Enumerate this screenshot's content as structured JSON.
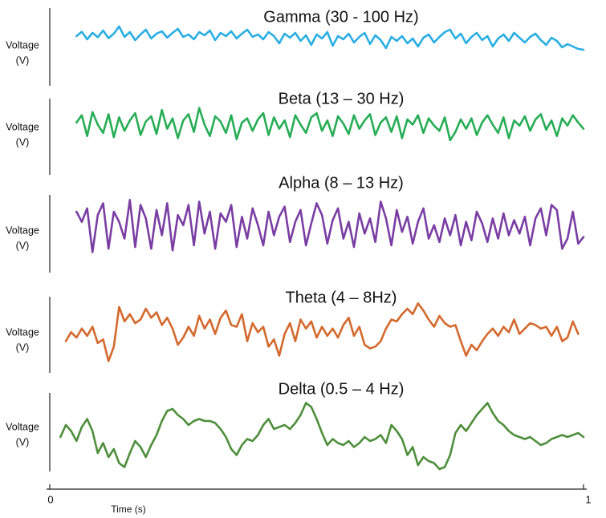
{
  "chart_data": [
    {
      "type": "line",
      "title": "Gamma (30 - 100 Hz)",
      "ylabel_line1": "Voltage",
      "ylabel_line2": "(V)",
      "color": "#2aaee3",
      "series": [
        {
          "x": [
            0.05,
            0.06,
            0.07,
            0.08,
            0.09,
            0.1,
            0.11,
            0.12,
            0.13,
            0.14,
            0.15,
            0.16,
            0.17,
            0.18,
            0.19,
            0.2,
            0.21,
            0.22,
            0.23,
            0.24,
            0.25,
            0.26,
            0.27,
            0.28,
            0.29,
            0.3,
            0.31,
            0.32,
            0.33,
            0.34,
            0.35,
            0.36,
            0.37,
            0.38,
            0.39,
            0.4,
            0.41,
            0.42,
            0.43,
            0.44,
            0.45,
            0.46,
            0.47,
            0.48,
            0.49,
            0.5,
            0.51,
            0.52,
            0.53,
            0.54,
            0.55,
            0.56,
            0.57,
            0.58,
            0.59,
            0.6,
            0.61,
            0.62,
            0.63,
            0.64,
            0.65,
            0.66,
            0.67,
            0.68,
            0.69,
            0.7,
            0.71,
            0.72,
            0.73,
            0.74,
            0.75,
            0.76,
            0.77,
            0.78,
            0.79,
            0.8,
            0.81,
            0.82,
            0.83,
            0.84,
            0.85,
            0.86,
            0.87,
            0.88,
            0.89,
            0.9,
            0.91,
            0.92,
            0.93,
            0.94,
            0.95,
            0.96,
            0.97,
            0.98,
            0.99,
            1.0
          ],
          "y": [
            0.35,
            0.62,
            0.15,
            0.55,
            0.28,
            0.7,
            0.22,
            0.5,
            0.95,
            0.3,
            0.6,
            0.1,
            0.45,
            0.75,
            0.2,
            0.5,
            0.65,
            0.25,
            0.55,
            0.8,
            0.3,
            0.45,
            0.15,
            0.6,
            0.4,
            0.7,
            0.1,
            0.55,
            0.35,
            0.65,
            0.2,
            0.5,
            0.75,
            0.3,
            0.45,
            0.15,
            0.6,
            0.35,
            -0.1,
            0.5,
            0.25,
            0.55,
            0.05,
            0.4,
            -0.2,
            0.45,
            0.2,
            0.6,
            -0.25,
            0.35,
            0.15,
            0.5,
            -0.05,
            0.3,
            0.55,
            -0.15,
            0.4,
            0.1,
            -0.4,
            0.3,
            0.05,
            0.35,
            -0.1,
            0.2,
            -0.3,
            0.25,
            0.45,
            -0.05,
            0.3,
            0.6,
            0.75,
            0.2,
            0.5,
            -0.1,
            0.3,
            0.55,
            0.1,
            0.35,
            -0.3,
            0.2,
            0.45,
            0.05,
            0.55,
            0.25,
            -0.05,
            0.3,
            0.5,
            0.1,
            -0.2,
            0.25,
            0.05,
            -0.35,
            -0.15,
            -0.3,
            -0.45,
            -0.5
          ]
        }
      ]
    },
    {
      "type": "line",
      "title": "Beta (13 – 30 Hz)",
      "ylabel_line1": "Voltage",
      "ylabel_line2": "(V)",
      "color": "#27ad55",
      "series": [
        {
          "x": [
            0.05,
            0.06,
            0.07,
            0.08,
            0.09,
            0.1,
            0.11,
            0.12,
            0.13,
            0.14,
            0.15,
            0.16,
            0.17,
            0.18,
            0.19,
            0.2,
            0.21,
            0.22,
            0.23,
            0.24,
            0.25,
            0.26,
            0.27,
            0.28,
            0.29,
            0.3,
            0.31,
            0.32,
            0.33,
            0.34,
            0.35,
            0.36,
            0.37,
            0.38,
            0.39,
            0.4,
            0.41,
            0.42,
            0.43,
            0.44,
            0.45,
            0.46,
            0.47,
            0.48,
            0.49,
            0.5,
            0.51,
            0.52,
            0.53,
            0.54,
            0.55,
            0.56,
            0.57,
            0.58,
            0.59,
            0.6,
            0.61,
            0.62,
            0.63,
            0.64,
            0.65,
            0.66,
            0.67,
            0.68,
            0.69,
            0.7,
            0.71,
            0.72,
            0.73,
            0.74,
            0.75,
            0.76,
            0.77,
            0.78,
            0.79,
            0.8,
            0.81,
            0.82,
            0.83,
            0.84,
            0.85,
            0.86,
            0.87,
            0.88,
            0.89,
            0.9,
            0.91,
            0.92,
            0.93,
            0.94,
            0.95,
            0.96,
            0.97,
            0.98,
            0.99,
            1.0
          ],
          "y": [
            0.2,
            0.55,
            -0.45,
            0.7,
            0.1,
            -0.3,
            0.6,
            -0.5,
            0.45,
            -0.2,
            0.3,
            0.65,
            -0.4,
            0.25,
            0.5,
            -0.35,
            0.8,
            -0.1,
            0.4,
            -0.55,
            0.3,
            0.6,
            -0.25,
            0.9,
            0.1,
            -0.45,
            0.5,
            0.25,
            -0.3,
            0.55,
            -0.6,
            0.2,
            0.4,
            -0.2,
            0.35,
            0.65,
            -0.4,
            0.45,
            -0.1,
            0.3,
            -0.5,
            0.55,
            0.1,
            -0.3,
            0.45,
            0.65,
            -0.2,
            0.3,
            -0.45,
            0.5,
            0.15,
            -0.35,
            0.55,
            -0.1,
            0.3,
            0.6,
            -0.4,
            0.2,
            0.45,
            -0.25,
            0.5,
            -0.55,
            0.35,
            0.1,
            0.55,
            -0.3,
            0.4,
            0.05,
            -0.2,
            0.45,
            -0.65,
            -0.25,
            0.35,
            -0.1,
            0.4,
            -0.4,
            0.2,
            0.55,
            0.1,
            -0.3,
            0.45,
            -0.55,
            0.3,
            0.05,
            0.5,
            -0.2,
            0.35,
            0.6,
            -0.15,
            0.3,
            -0.45,
            0.4,
            0.05,
            0.55,
            0.2,
            -0.1
          ]
        }
      ]
    },
    {
      "type": "line",
      "title": "Alpha (8 – 13 Hz)",
      "ylabel_line1": "Voltage",
      "ylabel_line2": "(V)",
      "color": "#7a3da3",
      "series": [
        {
          "x": [
            0.05,
            0.06,
            0.07,
            0.08,
            0.09,
            0.1,
            0.11,
            0.12,
            0.13,
            0.14,
            0.15,
            0.16,
            0.17,
            0.18,
            0.19,
            0.2,
            0.21,
            0.22,
            0.23,
            0.24,
            0.25,
            0.26,
            0.27,
            0.28,
            0.29,
            0.3,
            0.31,
            0.32,
            0.33,
            0.34,
            0.35,
            0.36,
            0.37,
            0.38,
            0.39,
            0.4,
            0.41,
            0.42,
            0.43,
            0.44,
            0.45,
            0.46,
            0.47,
            0.48,
            0.49,
            0.5,
            0.51,
            0.52,
            0.53,
            0.54,
            0.55,
            0.56,
            0.57,
            0.58,
            0.59,
            0.6,
            0.61,
            0.62,
            0.63,
            0.64,
            0.65,
            0.66,
            0.67,
            0.68,
            0.69,
            0.7,
            0.71,
            0.72,
            0.73,
            0.74,
            0.75,
            0.76,
            0.77,
            0.78,
            0.79,
            0.8,
            0.81,
            0.82,
            0.83,
            0.84,
            0.85,
            0.86,
            0.87,
            0.88,
            0.89,
            0.9,
            0.91,
            0.92,
            0.93,
            0.94,
            0.95,
            0.96,
            0.97,
            0.98,
            0.99,
            1.0
          ],
          "y": [
            0.5,
            0.2,
            0.6,
            -0.7,
            0.4,
            0.75,
            -0.6,
            0.5,
            0.2,
            -0.3,
            0.85,
            -0.55,
            0.7,
            0.3,
            -0.6,
            0.55,
            -0.2,
            0.75,
            -0.65,
            0.4,
            0.1,
            0.7,
            -0.5,
            0.8,
            -0.15,
            0.5,
            -0.6,
            0.45,
            0.2,
            0.7,
            -0.55,
            0.35,
            -0.3,
            0.6,
            0.1,
            -0.5,
            0.5,
            -0.2,
            0.35,
            0.65,
            -0.4,
            0.2,
            0.55,
            -0.5,
            0.15,
            0.75,
            0.4,
            -0.45,
            0.25,
            0.6,
            -0.3,
            0.2,
            -0.55,
            0.45,
            -0.15,
            0.3,
            -0.4,
            0.8,
            0.3,
            -0.5,
            0.55,
            -0.1,
            0.35,
            -0.45,
            0.2,
            0.6,
            -0.3,
            0.1,
            -0.4,
            0.3,
            -0.2,
            0.4,
            -0.5,
            0.2,
            -0.35,
            0.5,
            0.15,
            -0.4,
            0.3,
            -0.3,
            0.45,
            -0.2,
            0.25,
            -0.15,
            0.35,
            -0.5,
            0.3,
            0.6,
            -0.2,
            0.7,
            0.55,
            -0.6,
            -0.3,
            0.5,
            -0.45,
            -0.25
          ]
        }
      ]
    },
    {
      "type": "line",
      "title": "Theta (4 – 8Hz)",
      "ylabel_line1": "Voltage",
      "ylabel_line2": "(V)",
      "color": "#d4692d",
      "series": [
        {
          "x": [
            0.03,
            0.04,
            0.05,
            0.06,
            0.07,
            0.08,
            0.09,
            0.1,
            0.11,
            0.12,
            0.13,
            0.14,
            0.15,
            0.16,
            0.17,
            0.18,
            0.19,
            0.2,
            0.21,
            0.22,
            0.23,
            0.24,
            0.25,
            0.26,
            0.27,
            0.28,
            0.29,
            0.3,
            0.31,
            0.32,
            0.33,
            0.34,
            0.35,
            0.36,
            0.37,
            0.38,
            0.39,
            0.4,
            0.41,
            0.42,
            0.43,
            0.44,
            0.45,
            0.46,
            0.47,
            0.48,
            0.49,
            0.5,
            0.51,
            0.52,
            0.53,
            0.54,
            0.55,
            0.56,
            0.57,
            0.58,
            0.59,
            0.6,
            0.61,
            0.62,
            0.63,
            0.64,
            0.65,
            0.66,
            0.67,
            0.68,
            0.69,
            0.7,
            0.71,
            0.72,
            0.73,
            0.74,
            0.75,
            0.76,
            0.77,
            0.78,
            0.79,
            0.8,
            0.81,
            0.82,
            0.83,
            0.84,
            0.85,
            0.86,
            0.87,
            0.88,
            0.89,
            0.9,
            0.91,
            0.92,
            0.93,
            0.94,
            0.95,
            0.96,
            0.97,
            0.98,
            0.99
          ],
          "y": [
            -0.3,
            -0.05,
            -0.2,
            0.05,
            -0.15,
            0.1,
            -0.35,
            -0.25,
            -0.85,
            -0.45,
            0.65,
            0.25,
            0.45,
            0.2,
            0.3,
            0.6,
            0.35,
            0.5,
            0.15,
            0.35,
            0.05,
            -0.4,
            -0.2,
            0.1,
            -0.15,
            0.4,
            0.05,
            0.3,
            -0.1,
            0.35,
            0.55,
            0.15,
            0.1,
            0.45,
            -0.3,
            0.2,
            -0.05,
            0.1,
            -0.45,
            -0.25,
            -0.7,
            -0.1,
            0.2,
            -0.3,
            0.3,
            0.05,
            0.25,
            -0.2,
            0.1,
            -0.15,
            0.05,
            -0.2,
            0.15,
            0.35,
            -0.15,
            0.1,
            -0.4,
            -0.5,
            -0.45,
            -0.3,
            0.05,
            0.3,
            0.25,
            0.45,
            0.6,
            0.45,
            0.75,
            0.55,
            0.3,
            0.1,
            0.4,
            0.2,
            0.1,
            0.15,
            -0.3,
            -0.7,
            -0.4,
            -0.55,
            -0.3,
            -0.1,
            0.05,
            -0.15,
            0.1,
            -0.05,
            0.3,
            -0.1,
            0.05,
            0.2,
            0.15,
            0.05,
            0.1,
            -0.15,
            0.1,
            -0.3,
            -0.2,
            0.25,
            -0.1
          ]
        }
      ]
    },
    {
      "type": "line",
      "title": "Delta (0.5 – 4 Hz)",
      "ylabel_line1": "Voltage",
      "ylabel_line2": "(V)",
      "color": "#4e8e3c",
      "series": [
        {
          "x": [
            0.02,
            0.03,
            0.04,
            0.05,
            0.06,
            0.07,
            0.08,
            0.09,
            0.1,
            0.11,
            0.12,
            0.13,
            0.14,
            0.15,
            0.16,
            0.17,
            0.18,
            0.19,
            0.2,
            0.21,
            0.22,
            0.23,
            0.24,
            0.25,
            0.26,
            0.27,
            0.28,
            0.29,
            0.3,
            0.31,
            0.32,
            0.33,
            0.34,
            0.35,
            0.36,
            0.37,
            0.38,
            0.39,
            0.4,
            0.41,
            0.42,
            0.43,
            0.44,
            0.45,
            0.46,
            0.47,
            0.48,
            0.49,
            0.5,
            0.51,
            0.52,
            0.53,
            0.54,
            0.55,
            0.56,
            0.57,
            0.58,
            0.59,
            0.6,
            0.61,
            0.62,
            0.63,
            0.64,
            0.65,
            0.66,
            0.67,
            0.68,
            0.69,
            0.7,
            0.71,
            0.72,
            0.73,
            0.74,
            0.75,
            0.76,
            0.77,
            0.78,
            0.79,
            0.8,
            0.81,
            0.82,
            0.83,
            0.84,
            0.85,
            0.86,
            0.87,
            0.88,
            0.89,
            0.9,
            0.91,
            0.92,
            0.93,
            0.94,
            0.95,
            0.96,
            0.97,
            0.98,
            0.99,
            1.0
          ],
          "y": [
            -0.1,
            0.2,
            0.05,
            -0.2,
            0.15,
            0.35,
            0.05,
            -0.5,
            -0.25,
            -0.6,
            -0.4,
            -0.75,
            -0.85,
            -0.5,
            -0.2,
            -0.35,
            -0.6,
            -0.3,
            -0.05,
            0.3,
            0.55,
            0.6,
            0.45,
            0.35,
            0.2,
            0.3,
            0.35,
            0.3,
            0.3,
            0.25,
            0.1,
            -0.1,
            -0.4,
            -0.55,
            -0.3,
            -0.15,
            -0.2,
            -0.05,
            0.2,
            0.35,
            0.1,
            0.15,
            0.2,
            0.1,
            0.25,
            0.45,
            0.75,
            0.65,
            0.35,
            0.0,
            -0.3,
            -0.15,
            -0.25,
            -0.3,
            -0.2,
            -0.35,
            -0.25,
            -0.1,
            -0.2,
            -0.15,
            -0.05,
            -0.25,
            0.2,
            0.05,
            -0.15,
            -0.55,
            -0.35,
            -0.8,
            -0.6,
            -0.7,
            -0.75,
            -0.9,
            -0.85,
            -0.55,
            0.0,
            0.2,
            0.05,
            0.25,
            0.45,
            0.6,
            0.75,
            0.5,
            0.3,
            0.2,
            0.05,
            -0.05,
            -0.1,
            -0.15,
            -0.1,
            -0.2,
            -0.3,
            -0.25,
            -0.15,
            -0.1,
            -0.05,
            -0.1,
            -0.05,
            0.0,
            -0.1
          ]
        }
      ]
    }
  ],
  "x_axis": {
    "label": "Time (s)",
    "xlim": [
      0,
      1
    ],
    "ticks": [
      {
        "value": 0,
        "label": "0"
      },
      {
        "value": 1,
        "label": "1"
      }
    ]
  }
}
